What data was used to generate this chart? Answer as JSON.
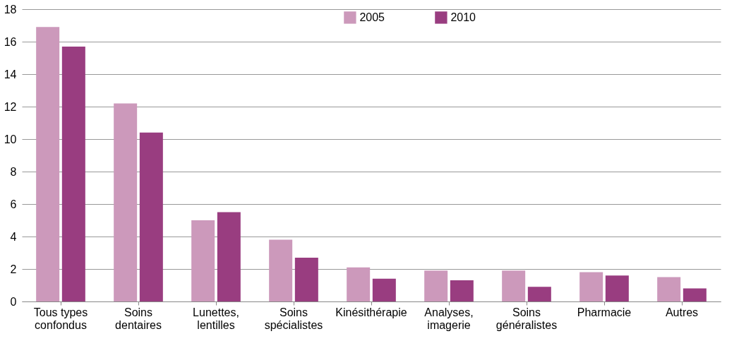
{
  "chart_data": {
    "type": "bar",
    "categories": [
      "Tous types\nconfondus",
      "Soins\ndentaires",
      "Lunettes,\nlentilles",
      "Soins\nspécialistes",
      "Kinésithérapie",
      "Analyses,\nimagerie",
      "Soins\ngénéralistes",
      "Pharmacie",
      "Autres"
    ],
    "series": [
      {
        "name": "2005",
        "color": "#cc99bb",
        "values": [
          16.9,
          12.2,
          5.0,
          3.8,
          2.1,
          1.9,
          1.9,
          1.8,
          1.5
        ]
      },
      {
        "name": "2010",
        "color": "#993d80",
        "values": [
          15.7,
          10.4,
          5.5,
          2.7,
          1.4,
          1.3,
          0.9,
          1.6,
          0.8
        ]
      }
    ],
    "ylim": [
      0,
      18
    ],
    "yticks": [
      0,
      2,
      4,
      6,
      8,
      10,
      12,
      14,
      16,
      18
    ],
    "grid": "y",
    "legend": "top"
  }
}
